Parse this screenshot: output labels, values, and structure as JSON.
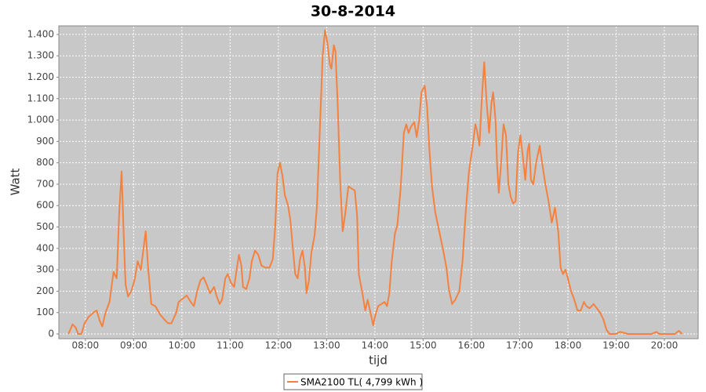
{
  "chart_data": {
    "type": "line",
    "title": "30-8-2014",
    "xlabel": "tijd",
    "ylabel": "Watt",
    "x": [
      "07:39",
      "07:44",
      "07:48",
      "07:51",
      "07:55",
      "07:59",
      "08:04",
      "08:10",
      "08:14",
      "08:18",
      "08:21",
      "08:25",
      "08:30",
      "08:35",
      "08:39",
      "08:42",
      "08:45",
      "08:48",
      "08:50",
      "08:53",
      "08:57",
      "09:01",
      "09:05",
      "09:09",
      "09:12",
      "09:15",
      "09:18",
      "09:22",
      "09:27",
      "09:33",
      "09:39",
      "09:43",
      "09:47",
      "09:53",
      "09:56",
      "10:01",
      "10:06",
      "10:11",
      "10:15",
      "10:19",
      "10:23",
      "10:27",
      "10:31",
      "10:35",
      "10:40",
      "10:43",
      "10:47",
      "10:50",
      "10:54",
      "10:57",
      "11:01",
      "11:05",
      "11:08",
      "11:11",
      "11:14",
      "11:16",
      "11:20",
      "11:24",
      "11:27",
      "11:31",
      "11:35",
      "11:39",
      "11:44",
      "11:49",
      "11:53",
      "11:56",
      "11:59",
      "12:02",
      "12:05",
      "12:08",
      "12:12",
      "12:15",
      "12:18",
      "12:21",
      "12:24",
      "12:27",
      "12:30",
      "12:33",
      "12:35",
      "12:38",
      "12:41",
      "12:45",
      "12:48",
      "12:52",
      "12:55",
      "12:58",
      "13:01",
      "13:04",
      "13:06",
      "13:09",
      "13:11",
      "13:14",
      "13:17",
      "13:20",
      "13:23",
      "13:27",
      "13:31",
      "13:35",
      "13:38",
      "13:40",
      "13:44",
      "13:48",
      "13:51",
      "13:54",
      "13:58",
      "14:00",
      "14:04",
      "14:08",
      "14:12",
      "14:15",
      "14:18",
      "14:21",
      "14:25",
      "14:28",
      "14:32",
      "14:36",
      "14:39",
      "14:42",
      "14:45",
      "14:49",
      "14:52",
      "14:55",
      "14:58",
      "15:02",
      "15:05",
      "15:08",
      "15:11",
      "15:15",
      "15:20",
      "15:25",
      "15:29",
      "15:32",
      "15:36",
      "15:40",
      "15:45",
      "15:49",
      "15:53",
      "15:57",
      "16:02",
      "16:05",
      "16:07",
      "16:10",
      "16:13",
      "16:16",
      "16:19",
      "16:22",
      "16:25",
      "16:27",
      "16:30",
      "16:32",
      "16:34",
      "16:37",
      "16:40",
      "16:43",
      "16:46",
      "16:49",
      "16:52",
      "16:55",
      "16:58",
      "17:01",
      "17:04",
      "17:07",
      "17:10",
      "17:12",
      "17:14",
      "17:17",
      "17:21",
      "17:25",
      "17:28",
      "17:32",
      "17:36",
      "17:40",
      "17:44",
      "17:48",
      "17:51",
      "17:54",
      "17:57",
      "18:00",
      "18:04",
      "18:08",
      "18:12",
      "18:16",
      "18:20",
      "18:23",
      "18:27",
      "18:32",
      "18:36",
      "18:40",
      "18:44",
      "18:48",
      "18:52",
      "19:00",
      "19:05",
      "19:10",
      "19:15",
      "19:44",
      "19:50",
      "19:54",
      "20:13",
      "20:18",
      "20:22"
    ],
    "series": [
      {
        "name": "SMA2100 TL( 4,799 kWh )",
        "color": "#f5813f",
        "values": [
          0,
          45,
          30,
          0,
          0,
          50,
          80,
          100,
          110,
          60,
          35,
          100,
          150,
          290,
          260,
          560,
          760,
          430,
          230,
          175,
          200,
          250,
          340,
          300,
          390,
          480,
          310,
          140,
          130,
          90,
          65,
          50,
          50,
          100,
          150,
          165,
          180,
          150,
          130,
          200,
          250,
          265,
          230,
          190,
          220,
          180,
          140,
          160,
          260,
          280,
          240,
          220,
          300,
          370,
          320,
          220,
          210,
          260,
          340,
          390,
          370,
          320,
          310,
          310,
          350,
          500,
          750,
          800,
          740,
          650,
          600,
          530,
          400,
          280,
          260,
          350,
          390,
          310,
          190,
          250,
          380,
          460,
          600,
          1000,
          1300,
          1420,
          1360,
          1260,
          1240,
          1350,
          1320,
          1050,
          700,
          480,
          560,
          690,
          680,
          670,
          550,
          280,
          200,
          110,
          160,
          110,
          40,
          80,
          130,
          140,
          150,
          130,
          190,
          340,
          470,
          510,
          680,
          940,
          980,
          940,
          970,
          990,
          920,
          1000,
          1130,
          1160,
          1060,
          850,
          690,
          570,
          480,
          390,
          310,
          210,
          140,
          160,
          200,
          340,
          570,
          760,
          890,
          980,
          950,
          880,
          1100,
          1270,
          1080,
          940,
          1080,
          1130,
          1000,
          790,
          660,
          800,
          980,
          930,
          700,
          640,
          610,
          620,
          850,
          930,
          830,
          720,
          860,
          890,
          720,
          700,
          810,
          880,
          800,
          700,
          620,
          520,
          590,
          480,
          310,
          280,
          300,
          260,
          200,
          160,
          110,
          110,
          150,
          130,
          120,
          140,
          120,
          100,
          70,
          20,
          0,
          0,
          10,
          5,
          0,
          0,
          10,
          0,
          0,
          15,
          0
        ]
      }
    ],
    "xlim": [
      "07:27",
      "20:42"
    ],
    "xticks": [
      "08:00",
      "09:00",
      "10:00",
      "11:00",
      "12:00",
      "13:00",
      "14:00",
      "15:00",
      "16:00",
      "17:00",
      "18:00",
      "19:00",
      "20:00"
    ],
    "ylim": [
      -22,
      1440
    ],
    "yticks": [
      0,
      100,
      200,
      300,
      400,
      500,
      600,
      700,
      800,
      900,
      {
        "value": 1000,
        "label": "1.000"
      },
      {
        "value": 1100,
        "label": "1.100"
      },
      {
        "value": 1200,
        "label": "1.200"
      },
      {
        "value": 1300,
        "label": "1.300"
      },
      {
        "value": 1400,
        "label": "1.400"
      }
    ],
    "grid": true,
    "legend": "bottom"
  }
}
